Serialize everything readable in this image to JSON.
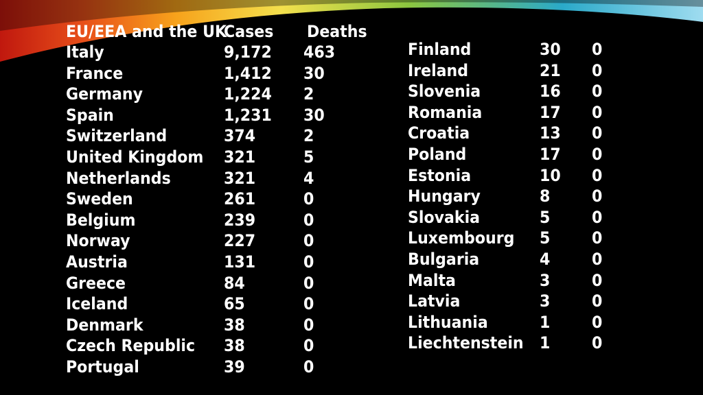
{
  "header": {
    "region": "EU/EEA and the UK",
    "cases": "Cases",
    "deaths": "Deaths"
  },
  "left_rows": [
    {
      "country": "Italy",
      "cases": "9,172",
      "deaths": "463"
    },
    {
      "country": "France",
      "cases": "1,412",
      "deaths": "30"
    },
    {
      "country": "Germany",
      "cases": "1,224",
      "deaths": "2"
    },
    {
      "country": "Spain",
      "cases": "1,231",
      "deaths": "30"
    },
    {
      "country": "Switzerland",
      "cases": "374",
      "deaths": "2"
    },
    {
      "country": "United Kingdom",
      "cases": "321",
      "deaths": "5"
    },
    {
      "country": "Netherlands",
      "cases": "321",
      "deaths": "4"
    },
    {
      "country": "Sweden",
      "cases": "261",
      "deaths": "0"
    },
    {
      "country": "Belgium",
      "cases": "239",
      "deaths": "0"
    },
    {
      "country": "Norway",
      "cases": "227",
      "deaths": "0"
    },
    {
      "country": "Austria",
      "cases": "131",
      "deaths": "0"
    },
    {
      "country": "Greece",
      "cases": "84",
      "deaths": "0"
    },
    {
      "country": "Iceland",
      "cases": "65",
      "deaths": "0"
    },
    {
      "country": "Denmark",
      "cases": "38",
      "deaths": "0"
    },
    {
      "country": "Czech Republic",
      "cases": "38",
      "deaths": "0"
    },
    {
      "country": "Portugal",
      "cases": "39",
      "deaths": "0"
    }
  ],
  "right_rows": [
    {
      "country": "Finland",
      "cases": "30",
      "deaths": "0"
    },
    {
      "country": "Ireland",
      "cases": "21",
      "deaths": "0"
    },
    {
      "country": "Slovenia",
      "cases": "16",
      "deaths": "0"
    },
    {
      "country": "Romania",
      "cases": "17",
      "deaths": "0"
    },
    {
      "country": "Croatia",
      "cases": "13",
      "deaths": "0"
    },
    {
      "country": "Poland",
      "cases": "17",
      "deaths": "0"
    },
    {
      "country": "Estonia",
      "cases": "10",
      "deaths": "0"
    },
    {
      "country": "Hungary",
      "cases": "8",
      "deaths": "0"
    },
    {
      "country": "Slovakia",
      "cases": "5",
      "deaths": "0"
    },
    {
      "country": "Luxembourg",
      "cases": "5",
      "deaths": "0"
    },
    {
      "country": "Bulgaria",
      "cases": "4",
      "deaths": "0"
    },
    {
      "country": "Malta",
      "cases": "3",
      "deaths": "0"
    },
    {
      "country": "Latvia",
      "cases": "3",
      "deaths": "0"
    },
    {
      "country": "Lithuania",
      "cases": "1",
      "deaths": "0"
    },
    {
      "country": "Liechtenstein",
      "cases": "1",
      "deaths": "0"
    }
  ],
  "theme": {
    "background": "#000000",
    "text": "#ffffff",
    "swoosh_colors": [
      "#c0180e",
      "#e8501a",
      "#f7a21b",
      "#f4e04d",
      "#8cc63f",
      "#2aa9c9",
      "#9fdcf0"
    ]
  }
}
